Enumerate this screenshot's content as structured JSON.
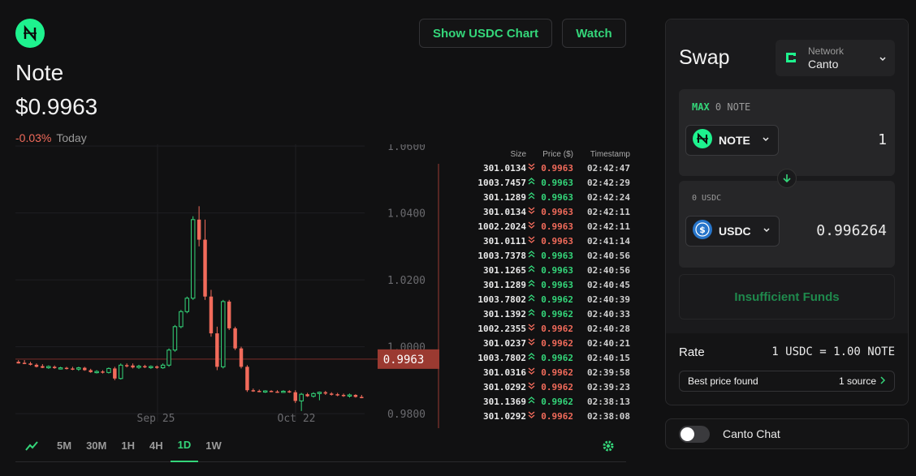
{
  "token": {
    "name": "Note",
    "price": "$0.9963",
    "change": "-0.03%",
    "period": "Today"
  },
  "header_buttons": {
    "usdc_chart": "Show USDC Chart",
    "watch": "Watch"
  },
  "colors": {
    "up": "#34d67a",
    "down": "#f26b5b",
    "accent": "#1ef28e",
    "background": "#111112"
  },
  "chart_data": {
    "type": "candlestick",
    "y_axis_labels": [
      "1.0600",
      "1.0400",
      "1.0200",
      "1.0000",
      "0.9800"
    ],
    "y_ticks": [
      1.06,
      1.04,
      1.02,
      1.0,
      0.98
    ],
    "ylim": [
      0.9776,
      1.0605
    ],
    "x_axis_labels": [
      "Sep 25",
      "Oct 22"
    ],
    "current_price_label": "0.9963",
    "current_price": 0.9963,
    "candles": [
      {
        "o": 0.9955,
        "h": 0.996,
        "l": 0.995,
        "c": 0.995
      },
      {
        "o": 0.9952,
        "h": 0.996,
        "l": 0.9948,
        "c": 0.995
      },
      {
        "o": 0.995,
        "h": 0.9955,
        "l": 0.9944,
        "c": 0.9946
      },
      {
        "o": 0.9946,
        "h": 0.995,
        "l": 0.9938,
        "c": 0.994
      },
      {
        "o": 0.9942,
        "h": 0.9948,
        "l": 0.9936,
        "c": 0.9937
      },
      {
        "o": 0.9937,
        "h": 0.9944,
        "l": 0.9934,
        "c": 0.9941
      },
      {
        "o": 0.994,
        "h": 0.9944,
        "l": 0.9934,
        "c": 0.9936
      },
      {
        "o": 0.9936,
        "h": 0.994,
        "l": 0.9932,
        "c": 0.9937
      },
      {
        "o": 0.9937,
        "h": 0.994,
        "l": 0.9932,
        "c": 0.9935
      },
      {
        "o": 0.9935,
        "h": 0.994,
        "l": 0.993,
        "c": 0.9933
      },
      {
        "o": 0.9933,
        "h": 0.994,
        "l": 0.9928,
        "c": 0.9937
      },
      {
        "o": 0.9937,
        "h": 0.994,
        "l": 0.9928,
        "c": 0.993
      },
      {
        "o": 0.993,
        "h": 0.9934,
        "l": 0.9922,
        "c": 0.9924
      },
      {
        "o": 0.9924,
        "h": 0.993,
        "l": 0.992,
        "c": 0.9926
      },
      {
        "o": 0.9926,
        "h": 0.993,
        "l": 0.992,
        "c": 0.9923
      },
      {
        "o": 0.9923,
        "h": 0.9938,
        "l": 0.992,
        "c": 0.9935
      },
      {
        "o": 0.9935,
        "h": 0.994,
        "l": 0.99,
        "c": 0.9905
      },
      {
        "o": 0.9905,
        "h": 0.995,
        "l": 0.9902,
        "c": 0.9945
      },
      {
        "o": 0.9945,
        "h": 0.995,
        "l": 0.9938,
        "c": 0.9944
      },
      {
        "o": 0.9944,
        "h": 0.995,
        "l": 0.9935,
        "c": 0.9938
      },
      {
        "o": 0.9938,
        "h": 0.9946,
        "l": 0.9934,
        "c": 0.9942
      },
      {
        "o": 0.9942,
        "h": 0.9946,
        "l": 0.9936,
        "c": 0.9939
      },
      {
        "o": 0.9939,
        "h": 0.9944,
        "l": 0.9934,
        "c": 0.9941
      },
      {
        "o": 0.9941,
        "h": 0.9944,
        "l": 0.9934,
        "c": 0.9937
      },
      {
        "o": 0.9937,
        "h": 0.995,
        "l": 0.9934,
        "c": 0.9945
      },
      {
        "o": 0.9945,
        "h": 0.9995,
        "l": 0.994,
        "c": 0.999
      },
      {
        "o": 0.999,
        "h": 1.0065,
        "l": 0.9985,
        "c": 1.006
      },
      {
        "o": 1.006,
        "h": 1.011,
        "l": 1.0055,
        "c": 1.0105
      },
      {
        "o": 1.0105,
        "h": 1.015,
        "l": 1.01,
        "c": 1.0145
      },
      {
        "o": 1.0145,
        "h": 1.039,
        "l": 1.014,
        "c": 1.038
      },
      {
        "o": 1.038,
        "h": 1.042,
        "l": 1.03,
        "c": 1.032
      },
      {
        "o": 1.032,
        "h": 1.038,
        "l": 1.014,
        "c": 1.015
      },
      {
        "o": 1.015,
        "h": 1.017,
        "l": 1.003,
        "c": 1.004
      },
      {
        "o": 1.004,
        "h": 1.006,
        "l": 0.993,
        "c": 0.994
      },
      {
        "o": 0.994,
        "h": 1.014,
        "l": 0.9935,
        "c": 1.0135
      },
      {
        "o": 1.0135,
        "h": 1.014,
        "l": 1.005,
        "c": 1.0055
      },
      {
        "o": 1.0055,
        "h": 1.006,
        "l": 0.999,
        "c": 0.9995
      },
      {
        "o": 0.9995,
        "h": 1.0,
        "l": 0.9935,
        "c": 0.994
      },
      {
        "o": 0.994,
        "h": 0.9945,
        "l": 0.9865,
        "c": 0.987
      },
      {
        "o": 0.987,
        "h": 0.9875,
        "l": 0.9865,
        "c": 0.9868
      },
      {
        "o": 0.9868,
        "h": 0.9872,
        "l": 0.9864,
        "c": 0.9866
      },
      {
        "o": 0.9866,
        "h": 0.987,
        "l": 0.9862,
        "c": 0.9868
      },
      {
        "o": 0.9868,
        "h": 0.987,
        "l": 0.9864,
        "c": 0.9866
      },
      {
        "o": 0.9866,
        "h": 0.987,
        "l": 0.9862,
        "c": 0.9865
      },
      {
        "o": 0.9865,
        "h": 0.987,
        "l": 0.9862,
        "c": 0.9867
      },
      {
        "o": 0.9867,
        "h": 0.987,
        "l": 0.9862,
        "c": 0.9864
      },
      {
        "o": 0.9864,
        "h": 0.987,
        "l": 0.9832,
        "c": 0.9838
      },
      {
        "o": 0.9838,
        "h": 0.9862,
        "l": 0.9808,
        "c": 0.9858
      },
      {
        "o": 0.9858,
        "h": 0.9862,
        "l": 0.985,
        "c": 0.9852
      },
      {
        "o": 0.9852,
        "h": 0.9864,
        "l": 0.9848,
        "c": 0.986
      },
      {
        "o": 0.986,
        "h": 0.9866,
        "l": 0.984,
        "c": 0.9864
      },
      {
        "o": 0.9864,
        "h": 0.9868,
        "l": 0.9856,
        "c": 0.986
      },
      {
        "o": 0.986,
        "h": 0.9864,
        "l": 0.9854,
        "c": 0.9858
      },
      {
        "o": 0.9858,
        "h": 0.9862,
        "l": 0.9852,
        "c": 0.9856
      },
      {
        "o": 0.9856,
        "h": 0.986,
        "l": 0.985,
        "c": 0.9853
      },
      {
        "o": 0.9853,
        "h": 0.986,
        "l": 0.9848,
        "c": 0.9856
      },
      {
        "o": 0.9856,
        "h": 0.9858,
        "l": 0.9848,
        "c": 0.985
      },
      {
        "o": 0.985,
        "h": 0.9856,
        "l": 0.9846,
        "c": 0.9848
      }
    ]
  },
  "trades": {
    "headers": {
      "size": "Size",
      "price": "Price ($)",
      "timestamp": "Timestamp"
    },
    "rows": [
      {
        "size": "301.0134",
        "dir": "down",
        "price": "0.9963",
        "time": "02:42:47"
      },
      {
        "size": "1003.7457",
        "dir": "up",
        "price": "0.9963",
        "time": "02:42:29"
      },
      {
        "size": "301.1289",
        "dir": "up",
        "price": "0.9963",
        "time": "02:42:24"
      },
      {
        "size": "301.0134",
        "dir": "down",
        "price": "0.9963",
        "time": "02:42:11"
      },
      {
        "size": "1002.2024",
        "dir": "down",
        "price": "0.9963",
        "time": "02:42:11"
      },
      {
        "size": "301.0111",
        "dir": "down",
        "price": "0.9963",
        "time": "02:41:14"
      },
      {
        "size": "1003.7378",
        "dir": "up",
        "price": "0.9963",
        "time": "02:40:56"
      },
      {
        "size": "301.1265",
        "dir": "up",
        "price": "0.9963",
        "time": "02:40:56"
      },
      {
        "size": "301.1289",
        "dir": "up",
        "price": "0.9963",
        "time": "02:40:45"
      },
      {
        "size": "1003.7802",
        "dir": "up",
        "price": "0.9962",
        "time": "02:40:39"
      },
      {
        "size": "301.1392",
        "dir": "up",
        "price": "0.9962",
        "time": "02:40:33"
      },
      {
        "size": "1002.2355",
        "dir": "down",
        "price": "0.9962",
        "time": "02:40:28"
      },
      {
        "size": "301.0237",
        "dir": "down",
        "price": "0.9962",
        "time": "02:40:21"
      },
      {
        "size": "1003.7802",
        "dir": "up",
        "price": "0.9962",
        "time": "02:40:15"
      },
      {
        "size": "301.0316",
        "dir": "down",
        "price": "0.9962",
        "time": "02:39:58"
      },
      {
        "size": "301.0292",
        "dir": "down",
        "price": "0.9962",
        "time": "02:39:23"
      },
      {
        "size": "301.1369",
        "dir": "up",
        "price": "0.9962",
        "time": "02:38:13"
      },
      {
        "size": "301.0292",
        "dir": "down",
        "price": "0.9962",
        "time": "02:38:08"
      }
    ]
  },
  "timeframes": {
    "icon": "line-chart-icon",
    "items": [
      "5M",
      "30M",
      "1H",
      "4H",
      "1D",
      "1W"
    ],
    "active": "1D",
    "settings_icon": "gear-icon"
  },
  "swap": {
    "title": "Swap",
    "network_label": "Network",
    "network_value": "Canto",
    "from": {
      "max_label": "MAX",
      "balance": "0 NOTE",
      "token": "NOTE",
      "amount": "1"
    },
    "to": {
      "balance": "0 USDC",
      "token": "USDC",
      "amount": "0.996264"
    },
    "action": "Insufficient Funds",
    "rate_label": "Rate",
    "rate_value": "1 USDC = 1.00 NOTE",
    "best_label": "Best price found",
    "best_source": "1 source"
  },
  "chat": {
    "label": "Canto Chat",
    "enabled": false
  }
}
